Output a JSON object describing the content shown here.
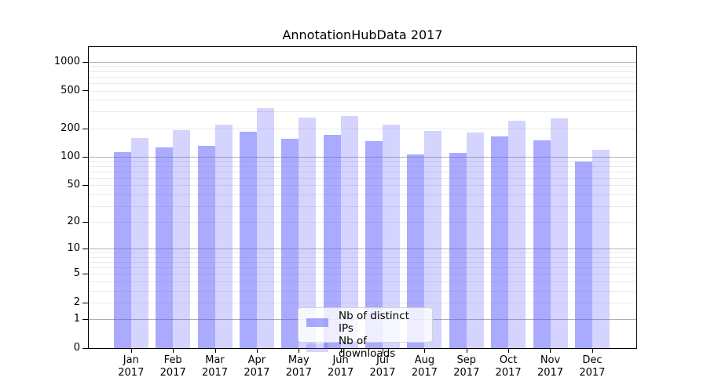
{
  "page": {
    "background": "#ffffff"
  },
  "chart_data": {
    "type": "bar",
    "title": "AnnotationHubData 2017",
    "categories": [
      "Jan 2017",
      "Feb 2017",
      "Mar 2017",
      "Apr 2017",
      "May 2017",
      "Jun 2017",
      "Jul 2017",
      "Aug 2017",
      "Sep 2017",
      "Oct 2017",
      "Nov 2017",
      "Dec 2017"
    ],
    "series": [
      {
        "name": "Nb of distinct IPs",
        "color": "rgba(85,85,255,0.5)",
        "values": [
          113,
          125,
          130,
          185,
          157,
          170,
          148,
          106,
          111,
          165,
          150,
          89
        ]
      },
      {
        "name": "Nb of downloads",
        "color": "rgba(85,85,255,0.25)",
        "values": [
          160,
          192,
          218,
          325,
          258,
          268,
          218,
          188,
          182,
          243,
          255,
          119
        ]
      }
    ],
    "xlabel": "",
    "ylabel": "",
    "yscale": "log1p",
    "ylim": [
      0,
      1430
    ],
    "y_ticks": [
      0,
      1,
      2,
      5,
      10,
      20,
      50,
      100,
      200,
      500,
      1000
    ],
    "grid": {
      "on": true,
      "major_values": [
        1,
        10,
        100,
        1000
      ],
      "major_color": "#b0b0b0",
      "minor_color": "#eaeaea"
    },
    "legend_position": "lower center",
    "axis_color": "#000000",
    "text_color": "#000000"
  }
}
